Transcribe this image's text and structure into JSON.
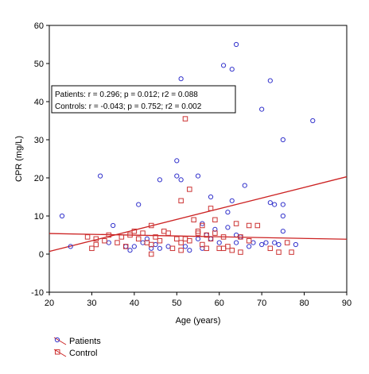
{
  "chart_data": {
    "type": "scatter",
    "title": "",
    "xlabel": "Age (years)",
    "ylabel": "CPR (mg/L)",
    "xlim": [
      20,
      90
    ],
    "ylim": [
      -10,
      60
    ],
    "xticks": [
      20,
      30,
      40,
      50,
      60,
      70,
      80,
      90
    ],
    "yticks": [
      -10,
      0,
      10,
      20,
      30,
      40,
      50,
      60
    ],
    "grid": false,
    "legend_position": "bottom-left",
    "annotation": {
      "patients": "Patients: r = 0.296; p = 0.012; r2 = 0.088",
      "controls": "Controls: r = -0.043; p = 0.752; r2 = 0.002"
    },
    "series": [
      {
        "name": "Patients",
        "marker": "circle",
        "color": "#3333cc",
        "fit_color": "#cc2222",
        "fit_line": {
          "x": [
            20,
            90
          ],
          "y": [
            0.7,
            20.3
          ]
        },
        "points": [
          [
            23,
            10
          ],
          [
            25,
            2
          ],
          [
            32,
            20.5
          ],
          [
            34,
            3
          ],
          [
            35,
            7.5
          ],
          [
            38,
            2
          ],
          [
            39,
            1
          ],
          [
            40,
            2
          ],
          [
            41,
            13
          ],
          [
            42,
            3
          ],
          [
            43,
            4
          ],
          [
            44,
            1.5
          ],
          [
            45,
            2.5
          ],
          [
            46,
            19.5
          ],
          [
            46,
            1.5
          ],
          [
            48,
            2
          ],
          [
            50,
            24.5
          ],
          [
            50,
            20.5
          ],
          [
            51,
            46
          ],
          [
            51,
            19.5
          ],
          [
            52,
            2
          ],
          [
            53,
            1
          ],
          [
            55,
            20.5
          ],
          [
            55,
            4
          ],
          [
            56,
            1.5
          ],
          [
            56,
            8
          ],
          [
            57,
            5
          ],
          [
            58,
            15
          ],
          [
            58,
            4
          ],
          [
            59,
            6.5
          ],
          [
            60,
            3
          ],
          [
            61,
            49.5
          ],
          [
            62,
            7
          ],
          [
            62,
            11
          ],
          [
            63,
            48.5
          ],
          [
            63,
            14
          ],
          [
            64,
            55
          ],
          [
            64,
            5
          ],
          [
            64,
            3
          ],
          [
            65,
            4.5
          ],
          [
            66,
            18
          ],
          [
            67,
            2
          ],
          [
            68,
            3
          ],
          [
            70,
            38
          ],
          [
            70,
            2.5
          ],
          [
            71,
            3
          ],
          [
            72,
            45.5
          ],
          [
            72,
            13.5
          ],
          [
            73,
            13
          ],
          [
            73,
            3
          ],
          [
            74,
            2.5
          ],
          [
            75,
            30
          ],
          [
            75,
            13
          ],
          [
            75,
            10
          ],
          [
            75,
            6
          ],
          [
            78,
            2.5
          ],
          [
            82,
            35
          ]
        ]
      },
      {
        "name": "Control",
        "marker": "square",
        "color": "#cc3333",
        "fit_color": "#cc2222",
        "fit_line": {
          "x": [
            20,
            90
          ],
          "y": [
            5.4,
            3.9
          ]
        },
        "points": [
          [
            29,
            4.5
          ],
          [
            30,
            1.5
          ],
          [
            31,
            4
          ],
          [
            31,
            2.5
          ],
          [
            33,
            3.5
          ],
          [
            34,
            5
          ],
          [
            36,
            3
          ],
          [
            37,
            4.5
          ],
          [
            38,
            2
          ],
          [
            39,
            5
          ],
          [
            40,
            6
          ],
          [
            41,
            4
          ],
          [
            42,
            5.5
          ],
          [
            43,
            3
          ],
          [
            44,
            0
          ],
          [
            44,
            2.5
          ],
          [
            44,
            7.5
          ],
          [
            45,
            4.5
          ],
          [
            46,
            3.5
          ],
          [
            47,
            6
          ],
          [
            48,
            5.5
          ],
          [
            49,
            1.5
          ],
          [
            50,
            4
          ],
          [
            51,
            14
          ],
          [
            51,
            3
          ],
          [
            51,
            1
          ],
          [
            52,
            35.5
          ],
          [
            52,
            4
          ],
          [
            53,
            17
          ],
          [
            53,
            3.5
          ],
          [
            54,
            9
          ],
          [
            55,
            6
          ],
          [
            55,
            5.5
          ],
          [
            56,
            7.5
          ],
          [
            56,
            2.5
          ],
          [
            57,
            5
          ],
          [
            57,
            1.5
          ],
          [
            58,
            12
          ],
          [
            58,
            4
          ],
          [
            59,
            9
          ],
          [
            59,
            5.5
          ],
          [
            60,
            1.5
          ],
          [
            61,
            4.5
          ],
          [
            61,
            1.5
          ],
          [
            62,
            2
          ],
          [
            63,
            1
          ],
          [
            64,
            8
          ],
          [
            65,
            4.5
          ],
          [
            65,
            0.5
          ],
          [
            67,
            7.5
          ],
          [
            67,
            3.5
          ],
          [
            69,
            7.5
          ],
          [
            72,
            1.5
          ],
          [
            74,
            0.5
          ],
          [
            76,
            3
          ],
          [
            77,
            0.5
          ]
        ]
      }
    ]
  }
}
